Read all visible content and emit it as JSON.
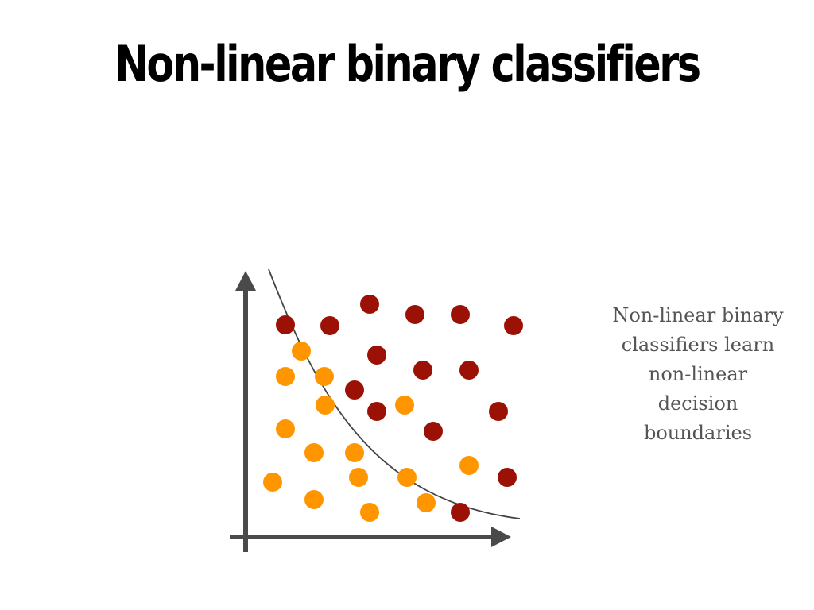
{
  "slide": {
    "title": "Non-linear binary classifiers",
    "caption": "Non-linear binary classifiers learn non-linear decision boundaries"
  },
  "colors": {
    "axis": "#4a4a4a",
    "boundary": "#444444",
    "class_a": "#9b1105",
    "class_b": "#ff9600",
    "caption_text": "#555555"
  },
  "scatter": {
    "class_a_label": "dark red points",
    "class_b_label": "orange points"
  }
}
